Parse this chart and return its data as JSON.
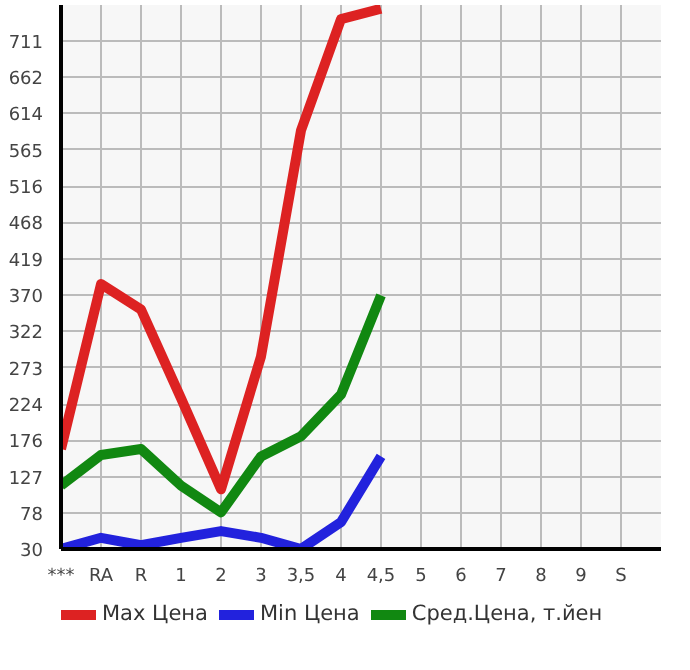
{
  "chart_data": {
    "type": "line",
    "categories": [
      "***",
      "RA",
      "R",
      "1",
      "2",
      "3",
      "3,5",
      "4",
      "4,5",
      "5",
      "6",
      "7",
      "8",
      "9",
      "S"
    ],
    "series": [
      {
        "name": "Max Цена",
        "color": "#dd2222",
        "values": [
          164,
          385,
          351,
          232,
          110,
          288,
          591,
          740,
          754,
          null,
          null,
          null,
          null,
          null,
          null
        ]
      },
      {
        "name": "Min Цена",
        "color": "#2222dd",
        "values": [
          30,
          45,
          35,
          45,
          54,
          45,
          30,
          66,
          154,
          null,
          null,
          null,
          null,
          null,
          null
        ]
      },
      {
        "name": "Сред.Цена, т.йен",
        "color": "#118811",
        "values": [
          115,
          156,
          164,
          115,
          79,
          154,
          181,
          237,
          370,
          null,
          null,
          null,
          null,
          null,
          null
        ]
      }
    ],
    "ylim": [
      30,
      759
    ],
    "yticks": [
      30,
      78,
      127,
      176,
      224,
      273,
      322,
      370,
      419,
      468,
      516,
      565,
      614,
      662,
      711
    ],
    "grid": true,
    "legend": "bottom",
    "marker": "none",
    "line_style": "solid"
  }
}
